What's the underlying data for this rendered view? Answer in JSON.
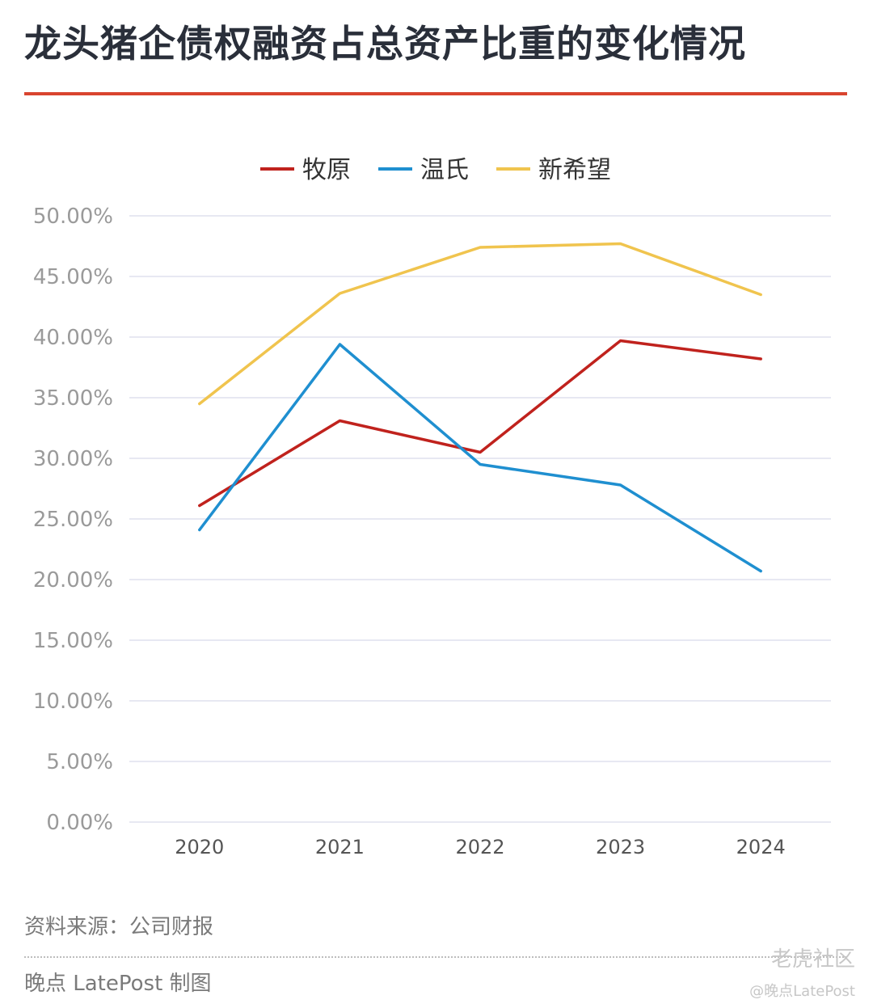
{
  "title": "龙头猪企债权融资占总资产比重的变化情况",
  "source_note": "资料来源：公司财报",
  "credit": "晚点 LatePost 制图",
  "watermark": {
    "site": "老虎社区",
    "user": "@晚点LatePost"
  },
  "chart_data": {
    "type": "line",
    "title": "龙头猪企债权融资占总资产比重的变化情况",
    "categories": [
      "2020",
      "2021",
      "2022",
      "2023",
      "2024"
    ],
    "series": [
      {
        "name": "牧原",
        "color": "#c0221d",
        "values": [
          0.261,
          0.331,
          0.305,
          0.397,
          0.382
        ]
      },
      {
        "name": "温氏",
        "color": "#1f8fd0",
        "values": [
          0.241,
          0.394,
          0.295,
          0.278,
          0.207
        ]
      },
      {
        "name": "新希望",
        "color": "#f0c44e",
        "values": [
          0.345,
          0.436,
          0.474,
          0.477,
          0.435
        ]
      }
    ],
    "ylim": [
      0,
      0.5
    ],
    "yticks": [
      "0.00%",
      "5.00%",
      "10.00%",
      "15.00%",
      "20.00%",
      "25.00%",
      "30.00%",
      "35.00%",
      "40.00%",
      "45.00%",
      "50.00%"
    ],
    "grid": true,
    "legend": "top-center"
  }
}
